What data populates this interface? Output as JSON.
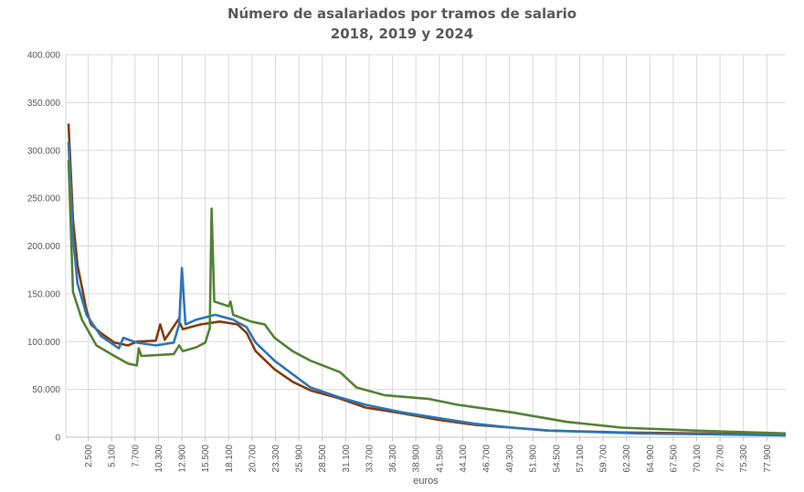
{
  "chart_data": {
    "type": "line",
    "title": [
      "Número de asalariados  por tramos  de salario",
      "2018, 2019 y 2024"
    ],
    "xlabel": "euros",
    "ylabel": "",
    "ylim": [
      0,
      400000
    ],
    "xlim": [
      0,
      80000
    ],
    "yticks": [
      0,
      50000,
      100000,
      150000,
      200000,
      250000,
      300000,
      350000,
      400000
    ],
    "ytick_labels": [
      "0",
      "50.000",
      "100.000",
      "150.000",
      "200.000",
      "250.000",
      "300.000",
      "350.000",
      "400.000"
    ],
    "xticks": [
      2500,
      5100,
      7700,
      10300,
      12900,
      15500,
      18100,
      20700,
      23300,
      25900,
      28500,
      31100,
      33700,
      36300,
      38900,
      41500,
      44100,
      46700,
      49300,
      51900,
      54500,
      57100,
      59700,
      62300,
      64900,
      67500,
      70100,
      72700,
      75300,
      77900
    ],
    "xtick_labels": [
      "2.500",
      "5.100",
      "7.700",
      "10.300",
      "12.900",
      "15.500",
      "18.100",
      "20.700",
      "23.300",
      "25.900",
      "28.500",
      "31.100",
      "33.700",
      "36.300",
      "38.900",
      "41.500",
      "44.100",
      "46.700",
      "49.300",
      "51.900",
      "54.500",
      "57.100",
      "59.700",
      "62.300",
      "64.900",
      "67.500",
      "70.100",
      "72.700",
      "75.300",
      "77.900"
    ],
    "grid": true,
    "legend": "none",
    "series": [
      {
        "color": "#843C0C",
        "x": [
          300,
          800,
          1300,
          2300,
          2800,
          3900,
          5400,
          6900,
          7900,
          10000,
          10500,
          11000,
          12500,
          13000,
          15000,
          17100,
          19100,
          20100,
          21100,
          23200,
          25200,
          27200,
          30300,
          33300,
          37400,
          41500,
          45500,
          49600,
          53600,
          61800,
          80000
        ],
        "y": [
          328000,
          228000,
          180000,
          133000,
          118000,
          109000,
          99000,
          96000,
          100000,
          101000,
          118000,
          102000,
          123000,
          113000,
          118000,
          121000,
          118000,
          109000,
          90000,
          71000,
          58000,
          49000,
          41000,
          31000,
          25000,
          18000,
          13000,
          10000,
          7000,
          5000,
          3000
        ]
      },
      {
        "color": "#2E75B6",
        "x": [
          300,
          800,
          1300,
          2300,
          3900,
          5900,
          6400,
          7900,
          10000,
          12000,
          12600,
          12900,
          13300,
          14500,
          16600,
          18600,
          20100,
          21100,
          23200,
          25200,
          27200,
          30300,
          33300,
          37400,
          41500,
          45500,
          49600,
          53600,
          63800,
          80000
        ],
        "y": [
          309000,
          209000,
          161000,
          128000,
          106000,
          93000,
          104000,
          99000,
          96000,
          99000,
          118000,
          177000,
          118000,
          123000,
          128000,
          123000,
          115000,
          99000,
          80000,
          66000,
          52000,
          42000,
          34000,
          26000,
          20000,
          14000,
          10000,
          7000,
          4000,
          2000
        ]
      },
      {
        "color": "#548235",
        "x": [
          300,
          800,
          1800,
          3400,
          5400,
          6900,
          7900,
          8100,
          8400,
          12000,
          12600,
          13000,
          14500,
          15500,
          16000,
          16200,
          16500,
          18100,
          18300,
          18600,
          20600,
          22100,
          23200,
          25200,
          27200,
          30500,
          32300,
          35400,
          40400,
          43500,
          49600,
          55700,
          61800,
          69900,
          80000
        ],
        "y": [
          290000,
          152000,
          123000,
          96000,
          85000,
          77000,
          75000,
          93000,
          85000,
          87000,
          96000,
          90000,
          94000,
          99000,
          114000,
          239000,
          142000,
          137000,
          142000,
          128000,
          121000,
          118000,
          104000,
          90000,
          80000,
          68000,
          52000,
          44000,
          40000,
          34000,
          26000,
          16000,
          10000,
          7000,
          4000
        ]
      }
    ]
  }
}
